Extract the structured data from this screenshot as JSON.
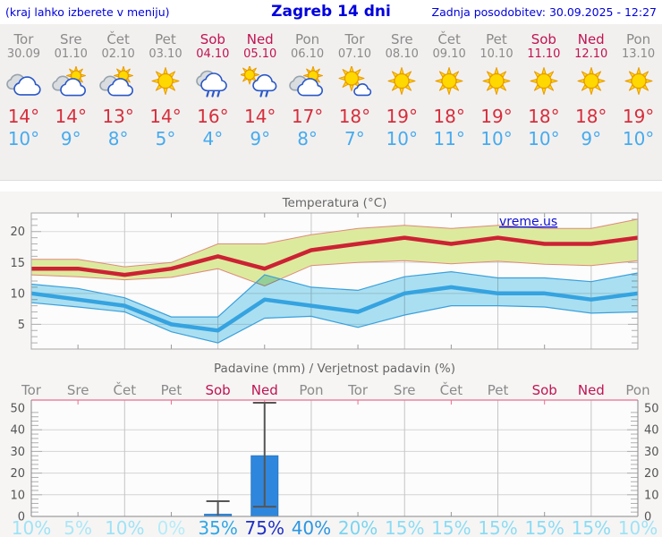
{
  "header": {
    "note": "(kraj lahko izberete v meniju)",
    "title": "Zagreb 14 dni",
    "updated": "Zadnja posodobitev: 30.09.2025 - 12:27"
  },
  "watermark": "vreme.us",
  "colors": {
    "header_text": "#0000dd",
    "weekday_text": "#8a8a8a",
    "weekend_text": "#c01352",
    "tmax_text": "#d62e3c",
    "tmin_text": "#46abee",
    "max_line": "#cc2233",
    "max_band": "#dcea9e",
    "max_band_edge": "#e08a7a",
    "min_line": "#35a3e0",
    "min_band": "#ace2f4",
    "min_band_edge": "#3aa0dc",
    "bar_fill": "#2f87dd",
    "whisker": "#555555",
    "precip_top_border": "#e87090",
    "watermark_text": "#1010d0"
  },
  "forecast": {
    "days": [
      {
        "name": "Tor",
        "date": "30.09",
        "weekend": false,
        "icon": "cloudy",
        "tmax": "14°",
        "tmin": "10°",
        "prob": "10%",
        "prob_color": "#9fe3f6"
      },
      {
        "name": "Sre",
        "date": "01.10",
        "weekend": false,
        "icon": "partly-cloudy",
        "tmax": "14°",
        "tmin": "9°",
        "prob": "5%",
        "prob_color": "#abe7f7"
      },
      {
        "name": "Čet",
        "date": "02.10",
        "weekend": false,
        "icon": "partly-cloudy",
        "tmax": "13°",
        "tmin": "8°",
        "prob": "10%",
        "prob_color": "#9fe3f6"
      },
      {
        "name": "Pet",
        "date": "03.10",
        "weekend": false,
        "icon": "sunny",
        "tmax": "14°",
        "tmin": "5°",
        "prob": "0%",
        "prob_color": "#b6ebf8"
      },
      {
        "name": "Sob",
        "date": "04.10",
        "weekend": true,
        "icon": "rain",
        "tmax": "16°",
        "tmin": "4°",
        "prob": "35%",
        "prob_color": "#2ea7e8"
      },
      {
        "name": "Ned",
        "date": "05.10",
        "weekend": true,
        "icon": "sun-rain",
        "tmax": "14°",
        "tmin": "9°",
        "prob": "75%",
        "prob_color": "#1f30c7"
      },
      {
        "name": "Pon",
        "date": "06.10",
        "weekend": false,
        "icon": "partly-cloudy",
        "tmax": "17°",
        "tmin": "8°",
        "prob": "40%",
        "prob_color": "#2b96e2"
      },
      {
        "name": "Tor",
        "date": "07.10",
        "weekend": false,
        "icon": "mostly-sunny",
        "tmax": "18°",
        "tmin": "7°",
        "prob": "20%",
        "prob_color": "#79d5f1"
      },
      {
        "name": "Sre",
        "date": "08.10",
        "weekend": false,
        "icon": "sunny",
        "tmax": "19°",
        "tmin": "10°",
        "prob": "15%",
        "prob_color": "#8bdcf4"
      },
      {
        "name": "Čet",
        "date": "09.10",
        "weekend": false,
        "icon": "sunny",
        "tmax": "18°",
        "tmin": "11°",
        "prob": "15%",
        "prob_color": "#8bdcf4"
      },
      {
        "name": "Pet",
        "date": "10.10",
        "weekend": false,
        "icon": "sunny",
        "tmax": "19°",
        "tmin": "10°",
        "prob": "15%",
        "prob_color": "#8bdcf4"
      },
      {
        "name": "Sob",
        "date": "11.10",
        "weekend": true,
        "icon": "sunny",
        "tmax": "18°",
        "tmin": "10°",
        "prob": "15%",
        "prob_color": "#8bdcf4"
      },
      {
        "name": "Ned",
        "date": "12.10",
        "weekend": true,
        "icon": "sunny",
        "tmax": "18°",
        "tmin": "9°",
        "prob": "15%",
        "prob_color": "#8bdcf4"
      },
      {
        "name": "Pon",
        "date": "13.10",
        "weekend": false,
        "icon": "sunny",
        "tmax": "19°",
        "tmin": "10°",
        "prob": "10%",
        "prob_color": "#9fe3f6"
      }
    ]
  },
  "chart_data": [
    {
      "type": "line",
      "title": "Temperatura (°C)",
      "categories": [
        "Tor 30.09",
        "Sre 01.10",
        "Čet 02.10",
        "Pet 03.10",
        "Sob 04.10",
        "Ned 05.10",
        "Pon 06.10",
        "Tor 07.10",
        "Sre 08.10",
        "Čet 09.10",
        "Pet 10.10",
        "Sob 11.10",
        "Ned 12.10",
        "Pon 13.10"
      ],
      "ylim": [
        1,
        23
      ],
      "yticks": [
        5,
        10,
        15,
        20
      ],
      "grid": true,
      "legend": "none",
      "series": [
        {
          "name": "t_max",
          "values": [
            14,
            14,
            13,
            14,
            16,
            14,
            17,
            18,
            19,
            18,
            19,
            18,
            18,
            19
          ]
        },
        {
          "name": "t_max_range_upper",
          "values": [
            15.5,
            15.5,
            14.3,
            15,
            18,
            18,
            19.5,
            20.5,
            21,
            20.5,
            21,
            20.5,
            20.5,
            22
          ]
        },
        {
          "name": "t_max_range_lower",
          "values": [
            13,
            12.7,
            12.2,
            12.6,
            14,
            11.2,
            14.5,
            15,
            15.3,
            14.8,
            15.2,
            14.7,
            14.5,
            15.3
          ]
        },
        {
          "name": "t_min",
          "values": [
            10,
            9,
            8,
            5,
            4,
            9,
            8,
            7,
            10,
            11,
            10,
            10,
            9,
            10
          ]
        },
        {
          "name": "t_min_range_upper",
          "values": [
            11.5,
            10.8,
            9.3,
            6.2,
            6.2,
            13,
            11,
            10.5,
            12.7,
            13.5,
            12.5,
            12.5,
            11.9,
            13.3
          ]
        },
        {
          "name": "t_min_range_lower",
          "values": [
            8.5,
            7.8,
            7,
            3.8,
            2,
            6,
            6.3,
            4.5,
            6.5,
            8,
            8,
            7.8,
            6.8,
            7
          ]
        }
      ]
    },
    {
      "type": "bar",
      "title": "Padavine (mm) / Verjetnost padavin (%)",
      "categories": [
        "Tor",
        "Sre",
        "Čet",
        "Pet",
        "Sob",
        "Ned",
        "Pon",
        "Tor",
        "Sre",
        "Čet",
        "Pet",
        "Sob",
        "Ned",
        "Pon"
      ],
      "values_mm": [
        0,
        0,
        0,
        0,
        1,
        28,
        0,
        0,
        0,
        0,
        0,
        0,
        0,
        0
      ],
      "whiskers": [
        {
          "index": 4,
          "low": 0,
          "high": 7
        },
        {
          "index": 5,
          "low": 4.5,
          "high": 52.5
        }
      ],
      "probabilities_pct": [
        10,
        5,
        10,
        0,
        35,
        75,
        40,
        20,
        15,
        15,
        15,
        15,
        15,
        10
      ],
      "ylim": [
        0,
        50
      ],
      "yticks": [
        0,
        10,
        20,
        30,
        40,
        50
      ],
      "grid": true
    }
  ]
}
